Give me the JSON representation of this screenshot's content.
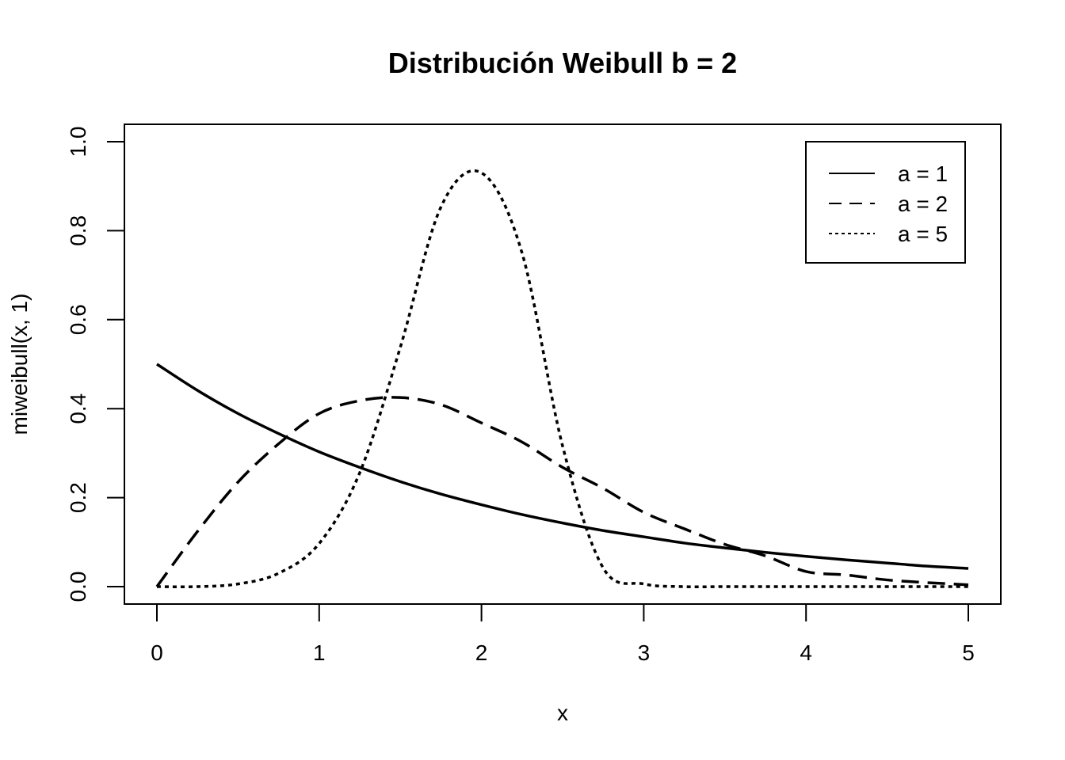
{
  "chart_data": {
    "type": "line",
    "title": "Distribución Weibull b = 2",
    "xlabel": "x",
    "ylabel": "miweibull(x, 1)",
    "xlim": [
      0,
      5
    ],
    "ylim": [
      0,
      1
    ],
    "x_ticks": [
      0,
      1,
      2,
      3,
      4,
      5
    ],
    "x_tick_labels": [
      "0",
      "1",
      "2",
      "3",
      "4",
      "5"
    ],
    "y_ticks": [
      0,
      0.2,
      0.4,
      0.6,
      0.8,
      1
    ],
    "y_tick_labels": [
      "0.0",
      "0.2",
      "0.4",
      "0.6",
      "0.8",
      "1.0"
    ],
    "grid": false,
    "legend_position": "top-right",
    "colors": {
      "line": "#000000",
      "background": "#ffffff"
    },
    "x": [
      0,
      0.25,
      0.5,
      0.75,
      1,
      1.25,
      1.5,
      1.75,
      2,
      2.25,
      2.5,
      2.75,
      3,
      3.25,
      3.5,
      3.75,
      4,
      4.25,
      4.5,
      4.75,
      5
    ],
    "series": [
      {
        "name": "a = 1",
        "dash": "solid",
        "values": [
          0.5,
          0.441,
          0.389,
          0.344,
          0.303,
          0.268,
          0.236,
          0.208,
          0.184,
          0.162,
          0.143,
          0.126,
          0.112,
          0.098,
          0.087,
          0.077,
          0.068,
          0.06,
          0.053,
          0.046,
          0.041
        ]
      },
      {
        "name": "a = 2",
        "dash": "dashed",
        "values": [
          0,
          0.124,
          0.235,
          0.321,
          0.389,
          0.418,
          0.425,
          0.409,
          0.368,
          0.325,
          0.268,
          0.221,
          0.167,
          0.13,
          0.095,
          0.069,
          0.034,
          0.026,
          0.015,
          0.009,
          0.004
        ]
      },
      {
        "name": "a = 5",
        "dash": "dotted",
        "values": [
          0,
          0,
          0.006,
          0.03,
          0.097,
          0.256,
          0.538,
          0.853,
          0.93,
          0.75,
          0.316,
          0.042,
          0.006,
          0,
          0,
          0,
          0,
          0,
          0,
          0,
          0
        ]
      }
    ]
  }
}
